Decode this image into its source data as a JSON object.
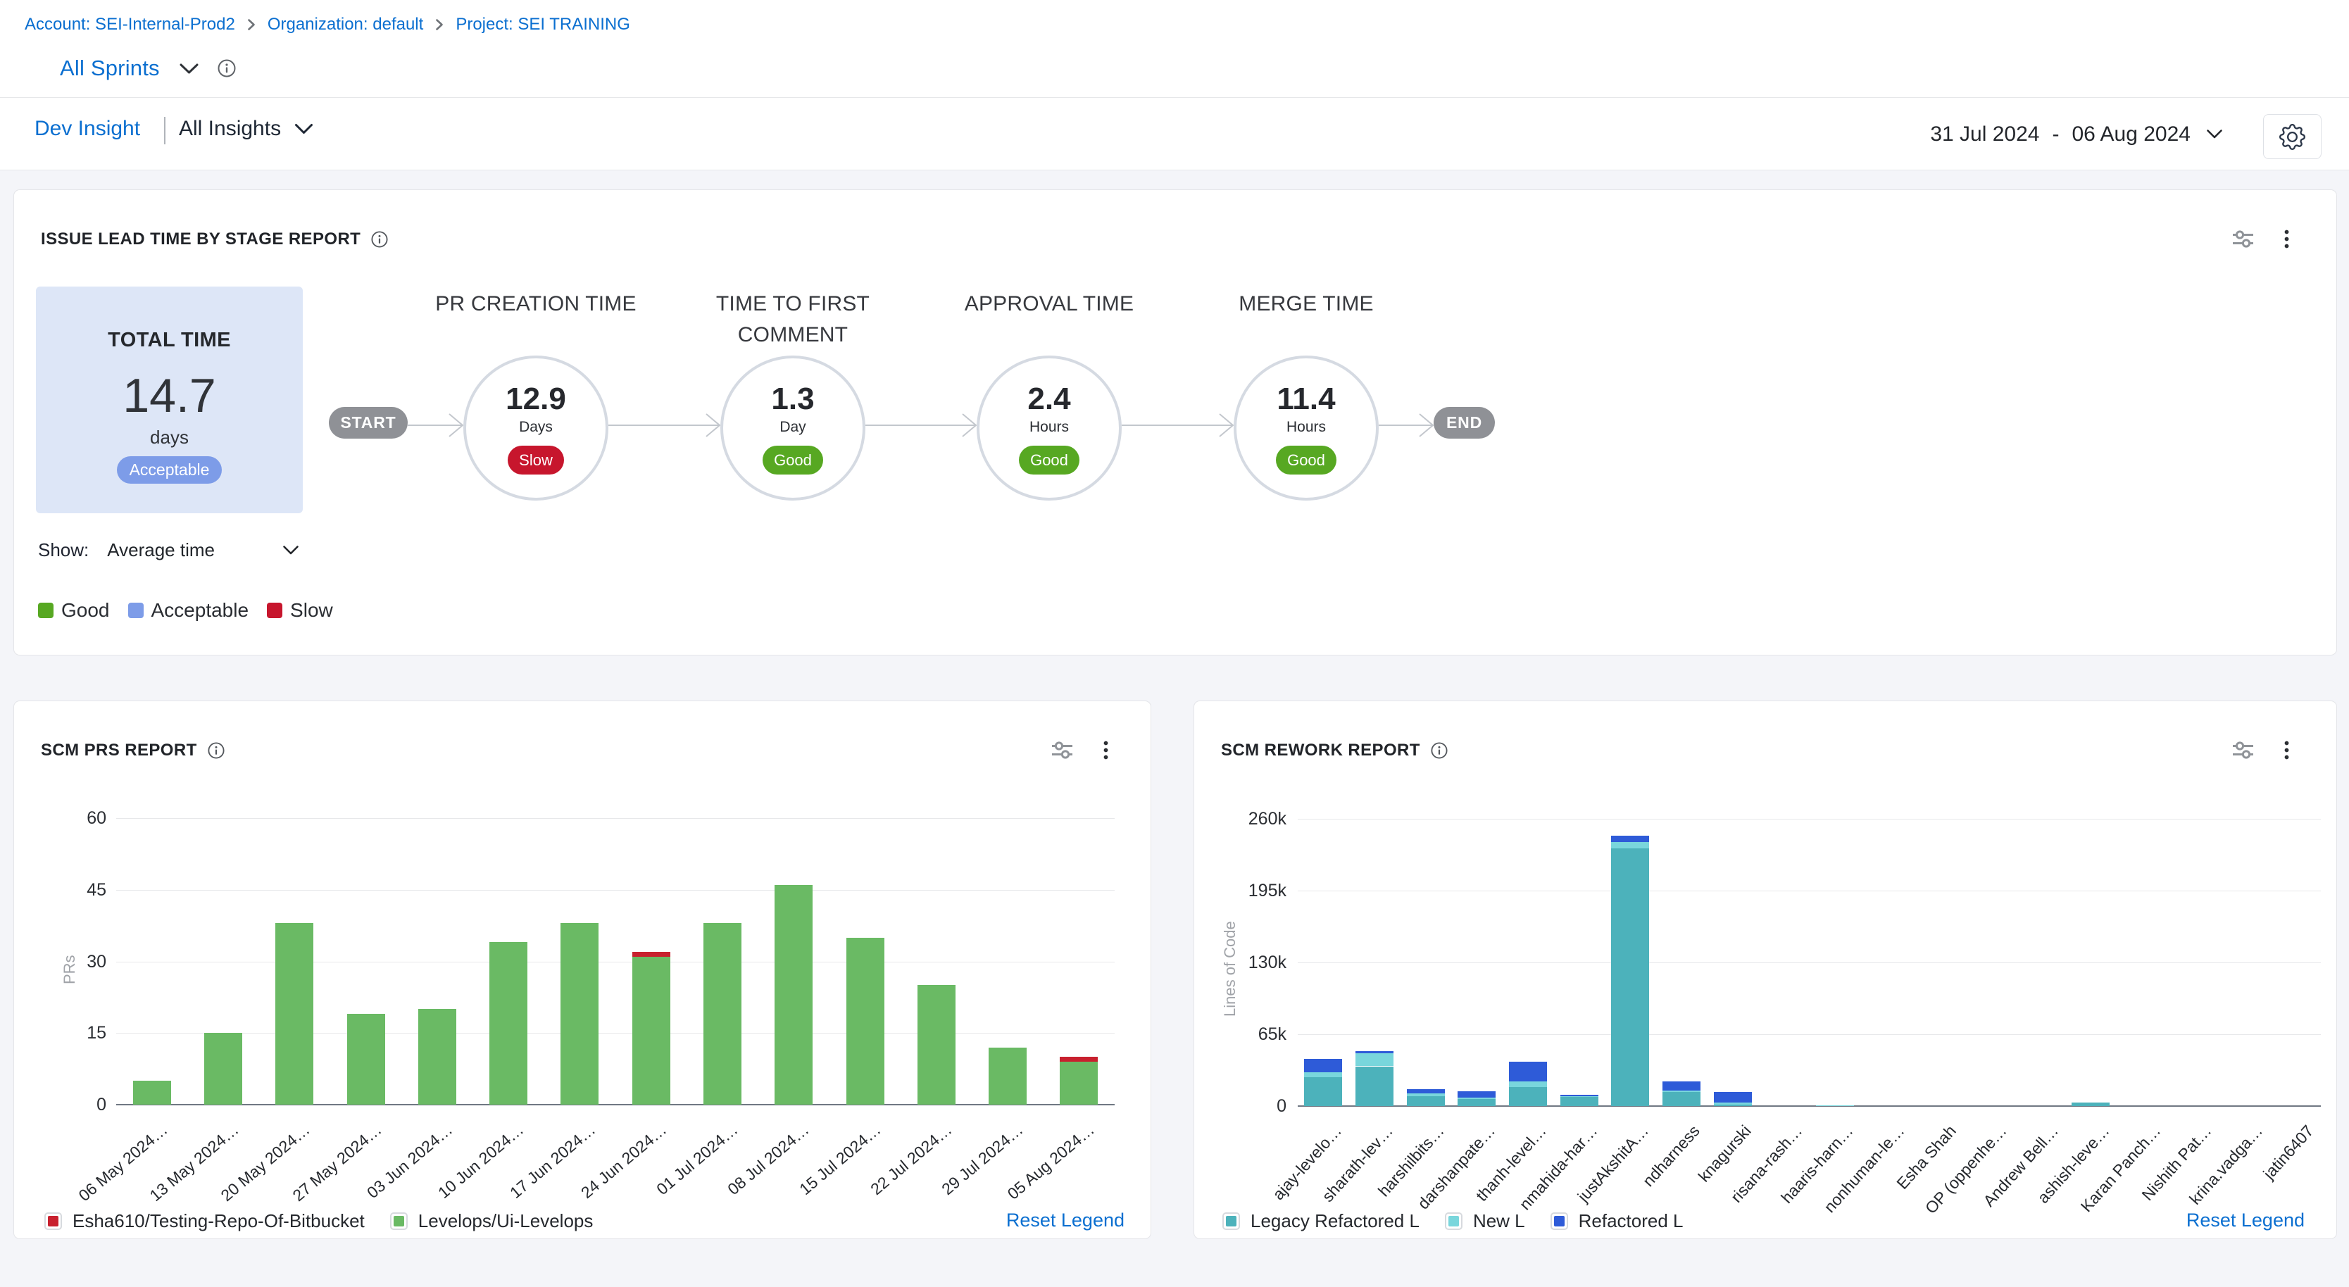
{
  "breadcrumb": {
    "items": [
      {
        "label": "Account: SEI-Internal-Prod2"
      },
      {
        "label": "Organization: default"
      },
      {
        "label": "Project: SEI TRAINING"
      }
    ]
  },
  "header": {
    "scope_title": "All Sprints",
    "insight_name": "Dev Insight",
    "insight_filter": "All Insights",
    "date_range": {
      "start": "31 Jul 2024",
      "separator": "-",
      "end": "06 Aug 2024"
    }
  },
  "colors": {
    "link_blue": "#0b6fd0",
    "good_green": "#57a822",
    "acceptable_blue": "#7d9ce8",
    "slow_red": "#c7162d",
    "prs_green": "#6aba64",
    "prs_red": "#c8202e",
    "rework_teal": "#4cb2bb",
    "rework_cyan": "#79d6dc",
    "rework_blue": "#2e5bd8"
  },
  "lead_time_panel": {
    "title": "ISSUE LEAD TIME BY STAGE REPORT",
    "total": {
      "label": "TOTAL TIME",
      "value": "14.7",
      "unit": "days",
      "badge": "Acceptable"
    },
    "flow": {
      "start_label": "START",
      "end_label": "END",
      "stages": [
        {
          "name": "PR CREATION TIME",
          "value": "12.9",
          "unit": "Days",
          "badge": "Slow",
          "badge_type": "slow"
        },
        {
          "name": "TIME TO FIRST COMMENT",
          "value": "1.3",
          "unit": "Day",
          "badge": "Good",
          "badge_type": "good"
        },
        {
          "name": "APPROVAL TIME",
          "value": "2.4",
          "unit": "Hours",
          "badge": "Good",
          "badge_type": "good"
        },
        {
          "name": "MERGE TIME",
          "value": "11.4",
          "unit": "Hours",
          "badge": "Good",
          "badge_type": "good"
        }
      ]
    },
    "show_label": "Show:",
    "show_value": "Average time",
    "legend": [
      {
        "label": "Good",
        "color": "#57a822"
      },
      {
        "label": "Acceptable",
        "color": "#7d9ce8"
      },
      {
        "label": "Slow",
        "color": "#c7162d"
      }
    ]
  },
  "scm_prs_panel": {
    "title": "SCM PRS REPORT",
    "reset_legend": "Reset Legend"
  },
  "scm_rework_panel": {
    "title": "SCM REWORK REPORT",
    "reset_legend": "Reset Legend"
  },
  "chart_data": [
    {
      "id": "prs",
      "type": "bar",
      "title": "SCM PRS REPORT",
      "xlabel": "",
      "ylabel": "PRs",
      "ylim": [
        0,
        60
      ],
      "yticks": [
        0,
        15,
        30,
        45,
        60
      ],
      "grid": true,
      "legend_position": "bottom",
      "categories": [
        "06 May 2024…",
        "13 May 2024…",
        "20 May 2024…",
        "27 May 2024…",
        "03 Jun 2024…",
        "10 Jun 2024…",
        "17 Jun 2024…",
        "24 Jun 2024…",
        "01 Jul 2024…",
        "08 Jul 2024…",
        "15 Jul 2024…",
        "22 Jul 2024…",
        "29 Jul 2024…",
        "05 Aug 2024…"
      ],
      "series": [
        {
          "name": "Levelops/Ui-Levelops",
          "color": "#6aba64",
          "values": [
            5,
            15,
            38,
            19,
            20,
            34,
            38,
            31,
            38,
            46,
            35,
            25,
            12,
            9
          ]
        },
        {
          "name": "Esha610/Testing-Repo-Of-Bitbucket",
          "color": "#c8202e",
          "values": [
            0,
            0,
            0,
            0,
            0,
            0,
            0,
            1,
            0,
            0,
            0,
            0,
            0,
            1
          ]
        }
      ],
      "legend_order": [
        "Esha610/Testing-Repo-Of-Bitbucket",
        "Levelops/Ui-Levelops"
      ]
    },
    {
      "id": "rework",
      "type": "stacked-bar",
      "title": "SCM REWORK REPORT",
      "xlabel": "",
      "ylabel": "Lines of Code",
      "ylim": [
        0,
        260000
      ],
      "yticks": [
        0,
        65000,
        130000,
        195000,
        260000
      ],
      "ytick_labels": [
        "0",
        "65k",
        "130k",
        "195k",
        "260k"
      ],
      "grid": true,
      "legend_position": "bottom",
      "categories": [
        "ajay-levelo…",
        "sharath-lev…",
        "harshilbits…",
        "darshanpate…",
        "thanh-level…",
        "nmahida-har…",
        "justAkshitA…",
        "ndharness",
        "knagurski",
        "risana-rash…",
        "haaris-harn…",
        "nonhuman-le…",
        "Esha Shah",
        "OP (oppenhe…",
        "Andrew Bell…",
        "ashish-leve…",
        "Karan Panch…",
        "Nishith Pat…",
        "krina.vadga…",
        "jatin6407"
      ],
      "series": [
        {
          "name": "Legacy Refactored L",
          "color": "#4cb2bb",
          "values": [
            26000,
            36000,
            9000,
            6500,
            17000,
            8000,
            233000,
            13000,
            1000,
            0,
            0,
            0,
            0,
            0,
            0,
            3500,
            0,
            0,
            0,
            0
          ]
        },
        {
          "name": "New L",
          "color": "#79d6dc",
          "values": [
            4500,
            11500,
            2500,
            1000,
            5000,
            1000,
            6000,
            1000,
            2000,
            0,
            800,
            0,
            0,
            0,
            0,
            0,
            0,
            0,
            0,
            0
          ]
        },
        {
          "name": "Refactored L",
          "color": "#2e5bd8",
          "values": [
            12500,
            2000,
            3500,
            6000,
            18000,
            1500,
            5500,
            8000,
            10000,
            0,
            0,
            0,
            0,
            0,
            0,
            0,
            0,
            0,
            0,
            0
          ]
        }
      ],
      "legend_order": [
        "Legacy Refactored L",
        "New L",
        "Refactored L"
      ]
    }
  ]
}
